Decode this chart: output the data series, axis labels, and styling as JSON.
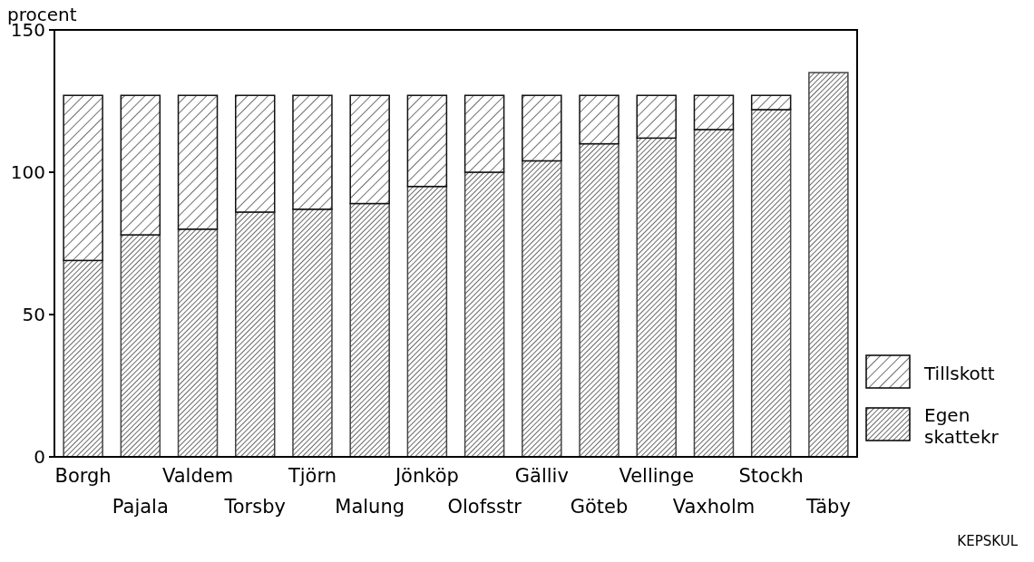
{
  "chart_data": {
    "type": "bar",
    "stacked": true,
    "ylabel": "procent",
    "categories": [
      "Borgh",
      "Pajala",
      "Valdem",
      "Torsby",
      "Tjörn",
      "Malung",
      "Jönköp",
      "Olofsstr",
      "Gälliv",
      "Göteb",
      "Vellinge",
      "Vaxholm",
      "Stockh",
      "Täby"
    ],
    "series": [
      {
        "name": "Egen skattekr",
        "color": "#444444",
        "values": [
          69,
          78,
          80,
          86,
          87,
          89,
          95,
          100,
          104,
          110,
          112,
          115,
          122,
          135
        ]
      },
      {
        "name": "Tillskott",
        "color": "#111111",
        "values": [
          58,
          49,
          47,
          41,
          40,
          38,
          32,
          27,
          23,
          17,
          15,
          12,
          5,
          0
        ]
      }
    ],
    "ylim": [
      0,
      150
    ],
    "yticks": [
      0,
      50,
      100,
      150
    ],
    "grid": false,
    "legend": "right",
    "annotations": [
      "KEPSKUL"
    ]
  }
}
